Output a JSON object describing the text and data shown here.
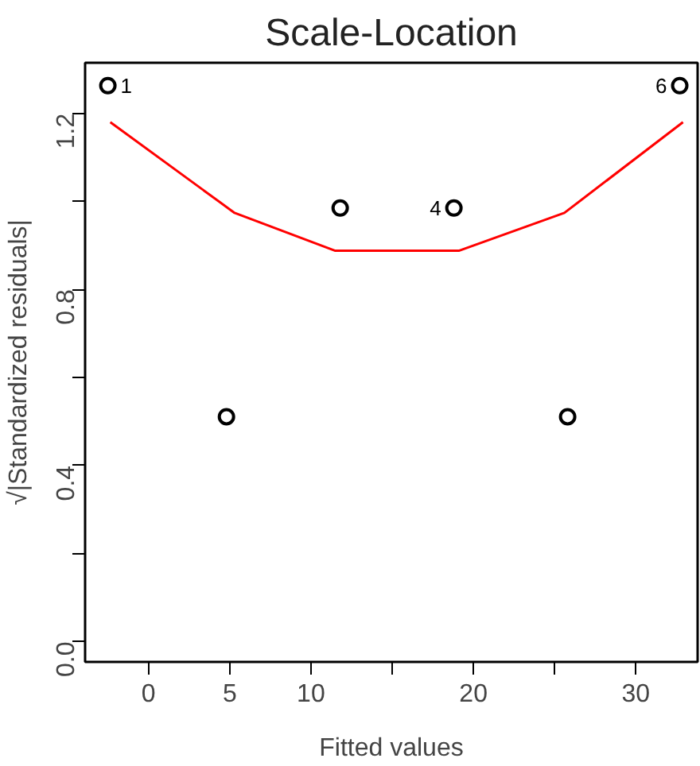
{
  "chart_data": {
    "type": "scatter",
    "title": "Scale-Location",
    "xlabel": "Fitted values",
    "ylabel": "√|Standardized residuals|",
    "xlim": [
      -3.9,
      33.8
    ],
    "ylim": [
      -0.046,
      1.315
    ],
    "xticks": [
      0,
      5,
      10,
      {
        "value": 15,
        "label": null
      },
      20,
      {
        "value": 25,
        "label": null
      },
      30
    ],
    "yticks": [
      {
        "value": 0,
        "label": "0.0"
      },
      {
        "value": 0.2,
        "label": null
      },
      {
        "value": 0.4,
        "label": "0.4"
      },
      {
        "value": 0.6,
        "label": null
      },
      {
        "value": 0.8,
        "label": "0.8"
      },
      {
        "value": 1.0,
        "label": null
      },
      {
        "value": 1.2,
        "label": "1.2"
      }
    ],
    "grid": false,
    "marker": "circle",
    "series": [
      {
        "color": "#000000",
        "x": [
          -2.5,
          4.8,
          11.8,
          18.8,
          25.8,
          32.7
        ],
        "values": [
          1.263,
          0.511,
          0.985,
          0.985,
          0.511,
          1.263
        ]
      },
      {
        "type": "line",
        "marker": "none",
        "color": "#ff0000",
        "x": [
          -2.35,
          5.3,
          11.5,
          19.1,
          25.6,
          32.9
        ],
        "values": [
          1.18,
          0.974,
          0.888,
          0.888,
          0.974,
          1.18
        ]
      }
    ],
    "annotations": [
      {
        "text": "1",
        "x": -2.5,
        "y": 1.263
      },
      {
        "text": "4",
        "x": 18.8,
        "y": 0.985
      },
      {
        "text": "6",
        "x": 32.7,
        "y": 1.263
      }
    ]
  }
}
